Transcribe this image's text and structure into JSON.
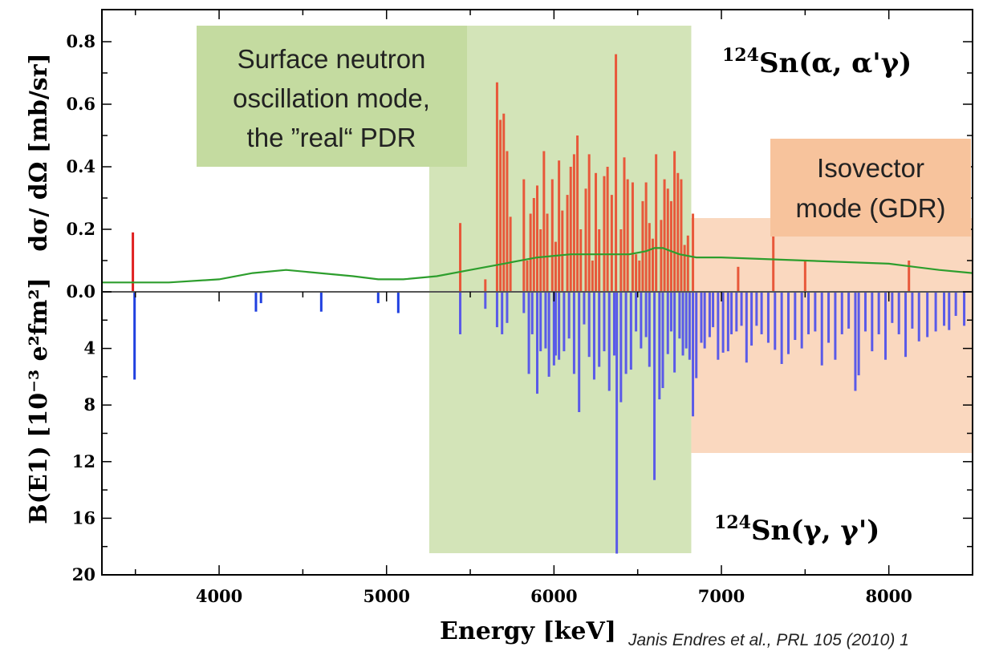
{
  "chart_data": {
    "type": "bar",
    "x_axis": {
      "label": "Energy [keV]",
      "range": [
        3300,
        8500
      ],
      "ticks": [
        4000,
        5000,
        6000,
        7000,
        8000
      ]
    },
    "upper_panel": {
      "ylabel": "dσ/ dΩ  [mb/sr]",
      "ylim": [
        0.0,
        0.85
      ],
      "ticks": [
        0.0,
        0.2,
        0.4,
        0.6,
        0.8
      ],
      "tick_labels": [
        "0.0",
        "0.2",
        "0.4",
        "0.6",
        "0.8"
      ],
      "reaction_label": {
        "mass": "124",
        "text": "Sn(α, α'γ)"
      },
      "series": [
        {
          "color": "#e8583a",
          "x": [
            3485,
            5440,
            5590,
            5660,
            5680,
            5700,
            5720,
            5740,
            5820,
            5840,
            5860,
            5880,
            5900,
            5920,
            5940,
            5960,
            5990,
            6010,
            6030,
            6050,
            6080,
            6100,
            6120,
            6140,
            6160,
            6190,
            6210,
            6230,
            6250,
            6270,
            6300,
            6320,
            6345,
            6370,
            6400,
            6420,
            6440,
            6470,
            6490,
            6510,
            6530,
            6550,
            6570,
            6590,
            6610,
            6640,
            6660,
            6680,
            6700,
            6720,
            6740,
            6760,
            6780,
            6800,
            6830,
            7100,
            7310,
            7500,
            8120
          ],
          "values": [
            0.19,
            0.22,
            0.04,
            0.67,
            0.55,
            0.57,
            0.45,
            0.24,
            0.36,
            0.1,
            0.25,
            0.3,
            0.34,
            0.2,
            0.45,
            0.25,
            0.36,
            0.16,
            0.42,
            0.26,
            0.31,
            0.4,
            0.44,
            0.5,
            0.2,
            0.33,
            0.44,
            0.1,
            0.38,
            0.2,
            0.37,
            0.4,
            0.31,
            0.76,
            0.2,
            0.43,
            0.36,
            0.35,
            0.12,
            0.1,
            0.29,
            0.35,
            0.22,
            0.17,
            0.44,
            0.23,
            0.36,
            0.33,
            0.29,
            0.45,
            0.38,
            0.36,
            0.15,
            0.18,
            0.25,
            0.08,
            0.2,
            0.1,
            0.1
          ]
        },
        {
          "color": "#2d9e2d",
          "x": [
            3300,
            3700,
            4000,
            4200,
            4400,
            4600,
            4800,
            4950,
            5100,
            5300,
            5500,
            5700,
            5900,
            6100,
            6300,
            6450,
            6550,
            6600,
            6650,
            6700,
            6750,
            6850,
            7000,
            7500,
            8000,
            8300,
            8500
          ],
          "values": [
            0.03,
            0.03,
            0.04,
            0.06,
            0.07,
            0.06,
            0.05,
            0.04,
            0.04,
            0.05,
            0.07,
            0.09,
            0.11,
            0.12,
            0.12,
            0.12,
            0.13,
            0.14,
            0.14,
            0.13,
            0.12,
            0.11,
            0.11,
            0.1,
            0.09,
            0.07,
            0.06
          ]
        }
      ]
    },
    "lower_panel": {
      "ylabel": "B(E1) [10⁻³ e²fm²]",
      "ylim": [
        0,
        20
      ],
      "inverted": true,
      "ticks": [
        4,
        8,
        12,
        16,
        20
      ],
      "tick_labels": [
        "4",
        "8",
        "12",
        "16",
        "20"
      ],
      "reaction_label": {
        "mass": "124",
        "text": "Sn(γ, γ')"
      },
      "series": [
        {
          "color": "#5a5ae8",
          "x": [
            3495,
            4220,
            4250,
            4610,
            4950,
            5070,
            5440,
            5590,
            5660,
            5690,
            5720,
            5820,
            5850,
            5870,
            5900,
            5920,
            5950,
            5970,
            6000,
            6010,
            6030,
            6060,
            6090,
            6120,
            6150,
            6180,
            6210,
            6240,
            6270,
            6300,
            6330,
            6360,
            6375,
            6400,
            6430,
            6460,
            6490,
            6520,
            6550,
            6570,
            6600,
            6630,
            6650,
            6680,
            6700,
            6720,
            6750,
            6770,
            6790,
            6810,
            6830,
            6850,
            6880,
            6900,
            6930,
            6950,
            6980,
            7010,
            7040,
            7060,
            7090,
            7120,
            7150,
            7180,
            7210,
            7240,
            7280,
            7320,
            7360,
            7400,
            7440,
            7480,
            7520,
            7560,
            7600,
            7640,
            7680,
            7720,
            7760,
            7800,
            7820,
            7860,
            7900,
            7940,
            7980,
            8020,
            8060,
            8100,
            8140,
            8180,
            8230,
            8280,
            8330,
            8360,
            8400,
            8450
          ],
          "values": [
            6.2,
            1.4,
            0.8,
            1.4,
            0.8,
            1.5,
            3.0,
            1.2,
            2.5,
            3.0,
            2.2,
            1.5,
            5.8,
            3.0,
            7.2,
            4.2,
            4.0,
            6.0,
            5.2,
            4.5,
            4.8,
            4.2,
            3.3,
            5.8,
            8.5,
            2.3,
            4.6,
            6.2,
            5.3,
            4.2,
            7.0,
            4.5,
            18.5,
            7.8,
            5.8,
            5.5,
            2.8,
            4.0,
            3.2,
            5.3,
            13.3,
            7.6,
            6.8,
            4.4,
            2.8,
            5.7,
            3.3,
            4.5,
            4.0,
            4.8,
            8.8,
            6.1,
            3.6,
            4.0,
            3.2,
            2.5,
            4.8,
            4.3,
            4.2,
            3.0,
            2.8,
            2.4,
            5.0,
            3.8,
            2.4,
            3.0,
            3.6,
            4.1,
            5.1,
            4.4,
            3.4,
            4.0,
            3.0,
            2.8,
            5.2,
            3.6,
            4.8,
            3.0,
            2.6,
            7.0,
            5.9,
            2.8,
            4.2,
            3.0,
            4.8,
            2.2,
            3.0,
            4.6,
            2.6,
            3.5,
            3.2,
            2.8,
            2.4,
            2.7,
            1.7,
            2.4
          ]
        }
      ]
    },
    "annotations": [
      {
        "text": "Surface neutron oscillation mode, the ”real“ PDR",
        "lines": [
          "Surface neutron",
          "oscillation mode,",
          "the ”real“ PDR"
        ],
        "color": "#c4dba0"
      },
      {
        "text": "Isovector mode (GDR)",
        "lines": [
          "Isovector",
          "mode (GDR)"
        ],
        "color": "#f7c39c"
      }
    ],
    "shaded_regions": [
      {
        "x_range": [
          5255,
          6820
        ],
        "color": "#c4dba0"
      },
      {
        "x_range": [
          6820,
          8500
        ],
        "color": "#f7c39c"
      }
    ],
    "citation": "Janis Endres et al., PRL 105 (2010) 1"
  }
}
